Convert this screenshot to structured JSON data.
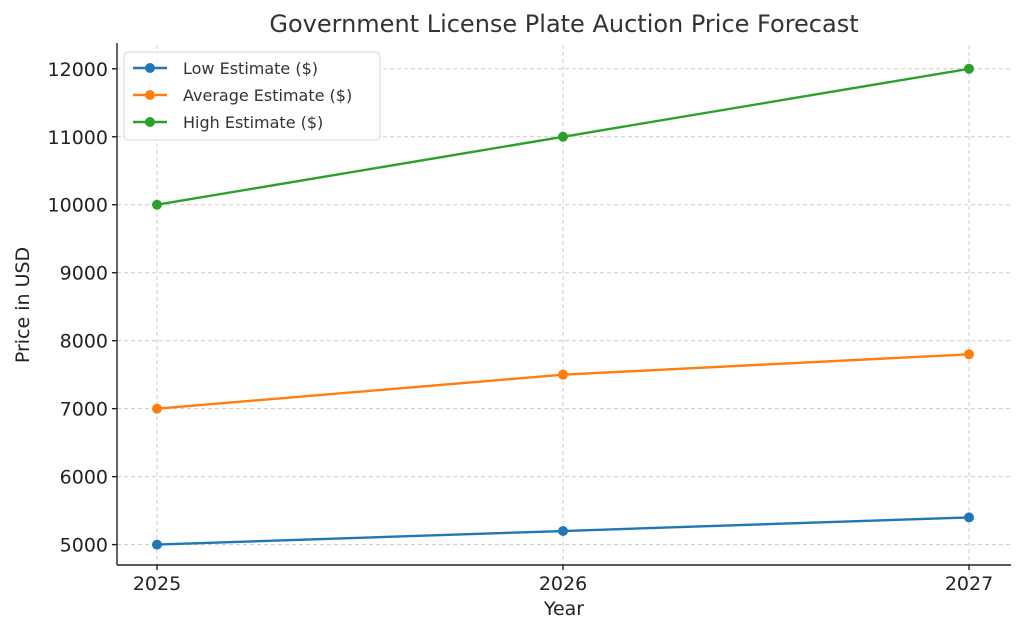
{
  "chart_data": {
    "type": "line",
    "title": "Government License Plate Auction Price Forecast",
    "xlabel": "Year",
    "ylabel": "Price in USD",
    "x": [
      "2025",
      "2026",
      "2027"
    ],
    "ylim": [
      4700,
      12350
    ],
    "yticks": [
      "5000",
      "6000",
      "7000",
      "8000",
      "9000",
      "10000",
      "11000",
      "12000"
    ],
    "grid": true,
    "legend_position": "top-left",
    "series": [
      {
        "name": "Low Estimate ($)",
        "values": [
          5000,
          5200,
          5400
        ],
        "color": "#1f77b4"
      },
      {
        "name": "Average Estimate ($)",
        "values": [
          7000,
          7500,
          7800
        ],
        "color": "#ff7f0e"
      },
      {
        "name": "High Estimate ($)",
        "values": [
          10000,
          11000,
          12000
        ],
        "color": "#2ca02c"
      }
    ]
  }
}
